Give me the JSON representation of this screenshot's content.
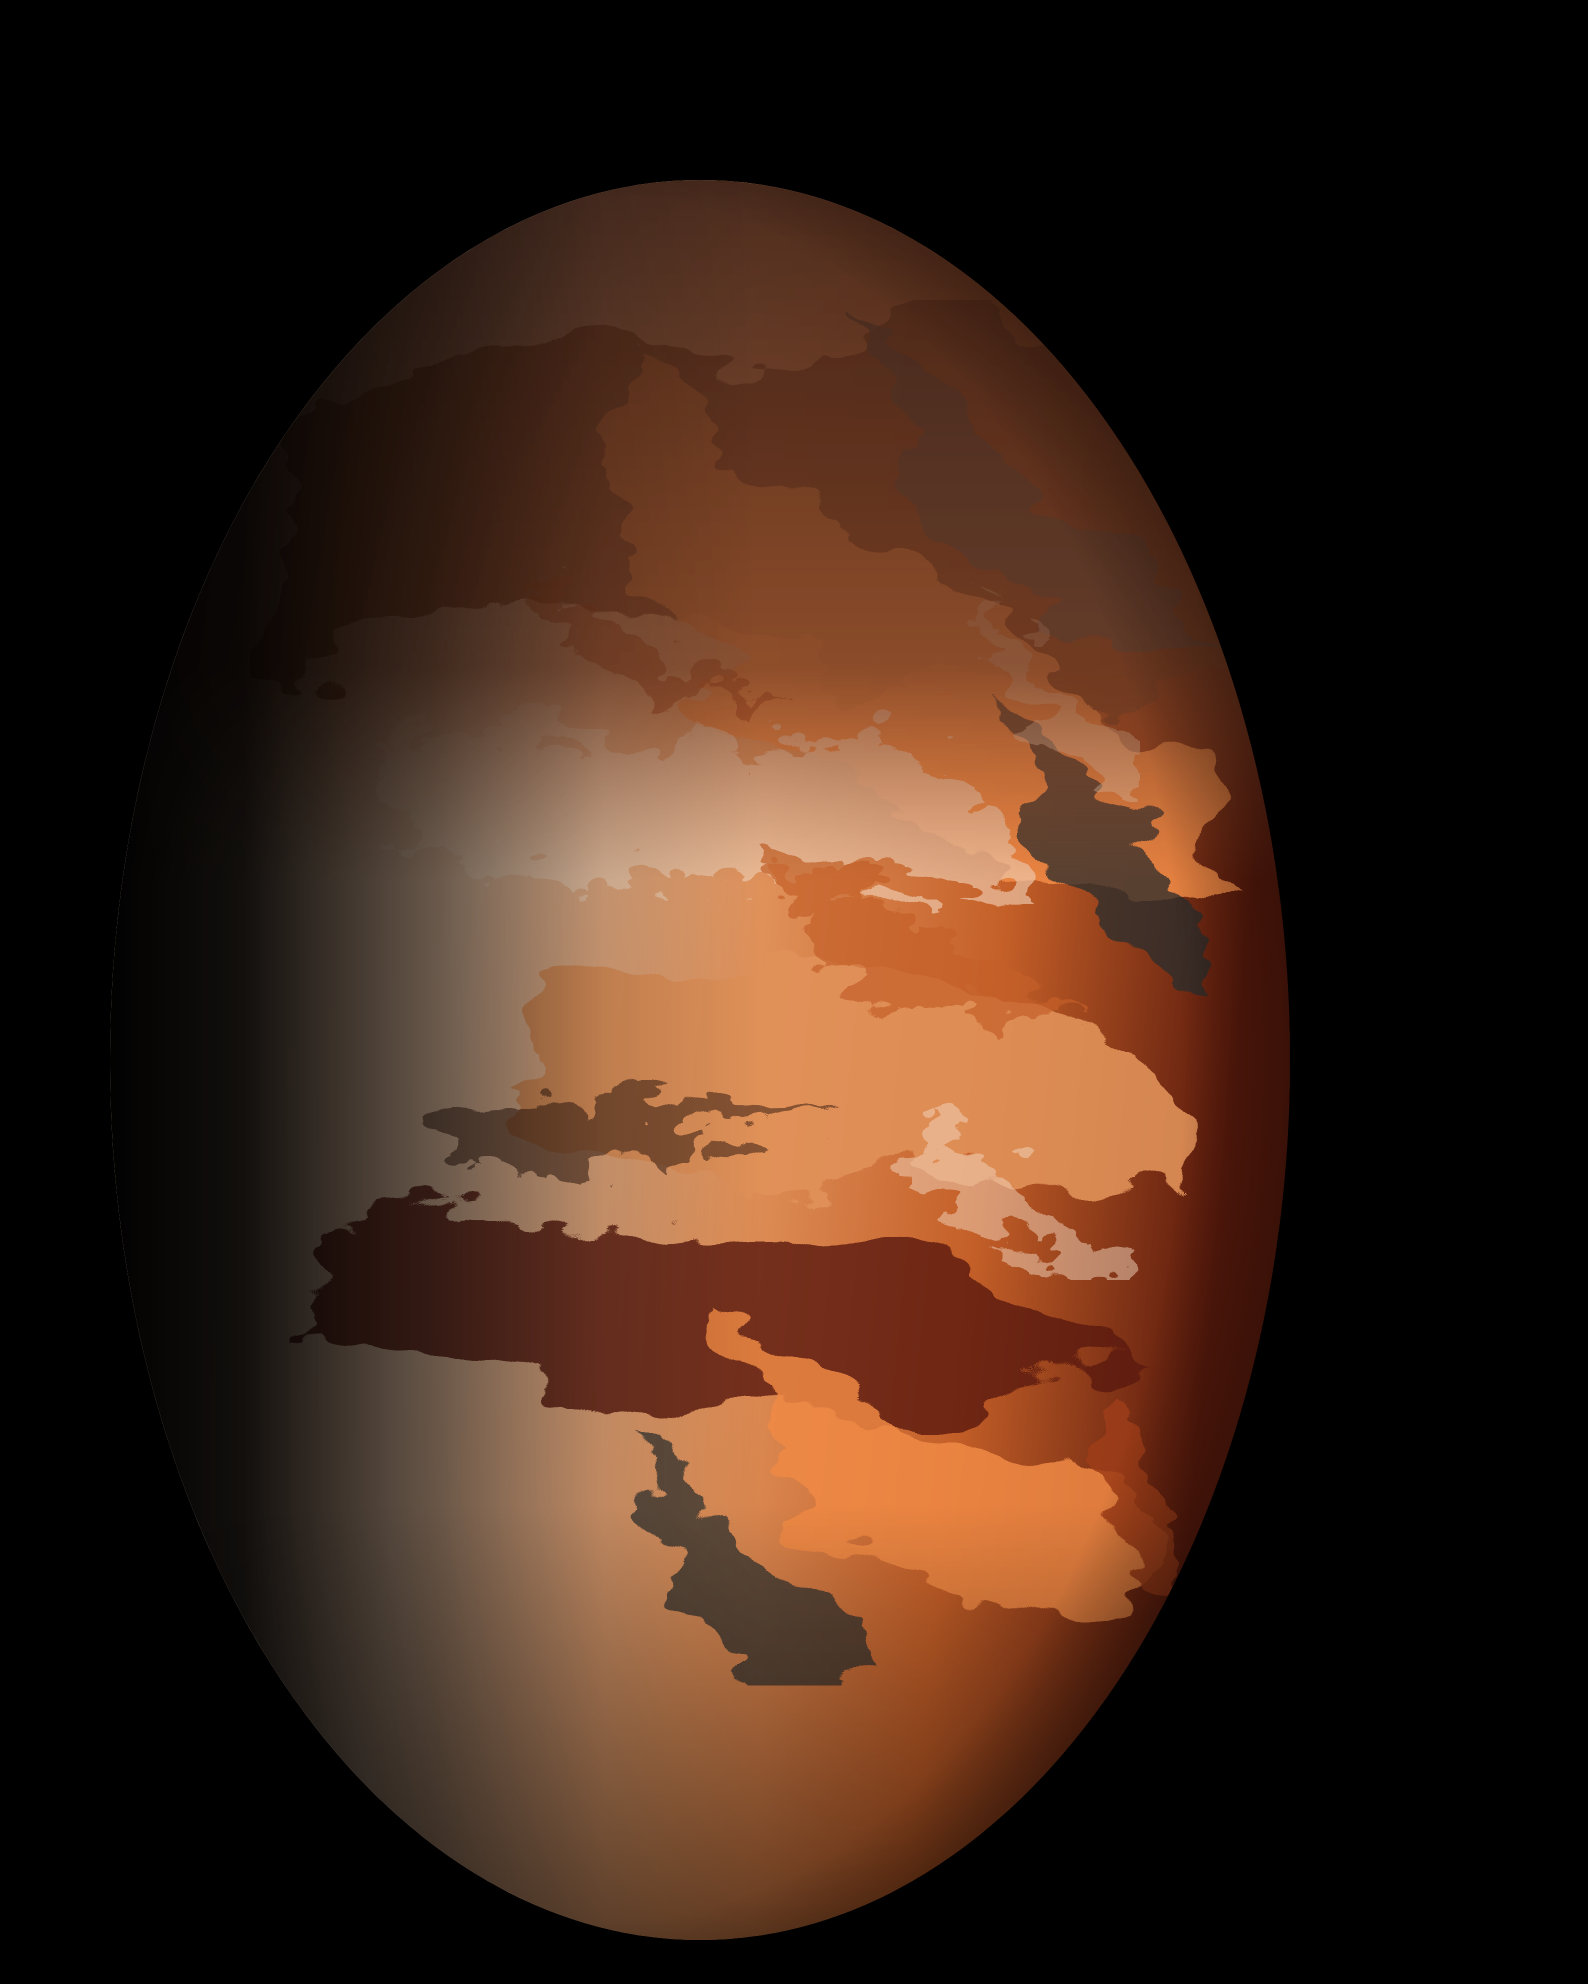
{
  "scene": {
    "subject": "planet-like-sphere",
    "background_color": "#000000",
    "lit_side": "right",
    "shadow_side": "left",
    "palette": {
      "cream": "#e9c4a6",
      "cream_light": "#f2d6bd",
      "copper": "#d9743a",
      "orange_bright": "#f08a46",
      "rust": "#9e3d16",
      "maroon": "#5a1a0c",
      "dark_brown": "#3a1e14",
      "teal_grey": "#3d4a4c",
      "shadow": "#000000"
    }
  }
}
